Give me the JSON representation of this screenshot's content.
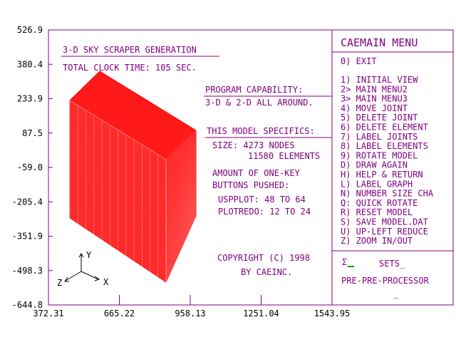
{
  "colors": {
    "background": "#ffffff",
    "frame": "#800080",
    "text": "#800080",
    "axis_text": "#000000",
    "model": "#ff0000",
    "cursor": "#00a000"
  },
  "plot": {
    "y_ticks": [
      "526.9",
      "380.4",
      "233.9",
      "87.5",
      "-59.0",
      "-205.4",
      "-351.9",
      "-498.3",
      "-644.8"
    ],
    "x_ticks": [
      "372.31",
      "665.22",
      "958.13",
      "1251.04",
      "1543.95"
    ]
  },
  "info": {
    "title": "3-D SKY SCRAPER GENERATION",
    "clock": "TOTAL CLOCK TIME: 105 SEC.",
    "capability_heading": "PROGRAM CAPABILITY:",
    "capability_text": "3-D & 2-D ALL AROUND.",
    "specifics_heading": "THIS MODEL SPECIFICS:",
    "size_line": "SIZE:  4273 NODES",
    "elements_line": "11580 ELEMENTS",
    "onekey_line1": "AMOUNT OF ONE-KEY",
    "onekey_line2": "BUTTONS PUSHED:",
    "usp_line": "USPPLOT:  48 TO 64",
    "plotredo_line": "PLOTREDO: 12 TO 24",
    "copyright": "COPYRIGHT (C) 1998",
    "company": "BY CAEINC."
  },
  "triad": {
    "y": "Y",
    "z": "Z",
    "x": "X"
  },
  "menu": {
    "title": "CAEMAIN MENU",
    "exit": "0) EXIT",
    "items": [
      "1) INITIAL VIEW",
      "2> MAIN MENU2",
      "3> MAIN MENU3",
      "4) MOVE JOINT",
      "5) DELETE JOINT",
      "6) DELETE ELEMENT",
      "7) LABEL JOINTS",
      "8) LABEL ELEMENTS",
      "9) ROTATE MODEL",
      "D) DRAW AGAIN",
      "H) HELP & RETURN",
      "L) LABEL GRAPH",
      "N) NUMBER SIZE CHA",
      "Q: QUICK ROTATE",
      "R) RESET MODEL",
      "S) SAVE MODEL.DAT",
      "U) UP-LEFT REDUCE",
      "Z) ZOOM IN/OUT"
    ],
    "sets_prompt": "Σ_",
    "sets_label": "SETS_",
    "footer": "PRE-PRE-PROCESSOR",
    "footer_cursor": "_"
  }
}
